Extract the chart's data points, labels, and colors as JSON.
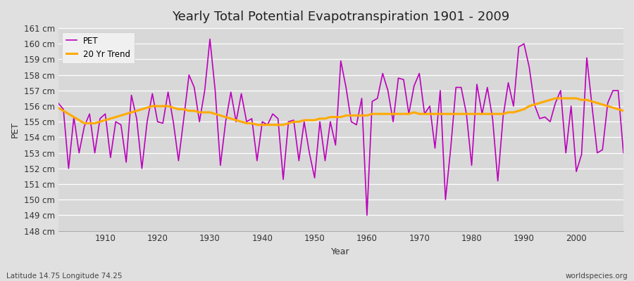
{
  "title": "Yearly Total Potential Evapotranspiration 1901 - 2009",
  "xlabel": "Year",
  "ylabel": "PET",
  "subtitle": "Latitude 14.75 Longitude 74.25",
  "watermark": "worldspecies.org",
  "ylim": [
    148,
    161
  ],
  "years": [
    1901,
    1902,
    1903,
    1904,
    1905,
    1906,
    1907,
    1908,
    1909,
    1910,
    1911,
    1912,
    1913,
    1914,
    1915,
    1916,
    1917,
    1918,
    1919,
    1920,
    1921,
    1922,
    1923,
    1924,
    1925,
    1926,
    1927,
    1928,
    1929,
    1930,
    1931,
    1932,
    1933,
    1934,
    1935,
    1936,
    1937,
    1938,
    1939,
    1940,
    1941,
    1942,
    1943,
    1944,
    1945,
    1946,
    1947,
    1948,
    1949,
    1950,
    1951,
    1952,
    1953,
    1954,
    1955,
    1956,
    1957,
    1958,
    1959,
    1960,
    1961,
    1962,
    1963,
    1964,
    1965,
    1966,
    1967,
    1968,
    1969,
    1970,
    1971,
    1972,
    1973,
    1974,
    1975,
    1976,
    1977,
    1978,
    1979,
    1980,
    1981,
    1982,
    1983,
    1984,
    1985,
    1986,
    1987,
    1988,
    1989,
    1990,
    1991,
    1992,
    1993,
    1994,
    1995,
    1996,
    1997,
    1998,
    1999,
    2000,
    2001,
    2002,
    2003,
    2004,
    2005,
    2006,
    2007,
    2008,
    2009
  ],
  "pet": [
    156.2,
    155.8,
    152.0,
    155.3,
    153.0,
    154.7,
    155.5,
    153.0,
    155.2,
    155.5,
    152.7,
    155.0,
    154.8,
    152.4,
    156.7,
    155.2,
    152.0,
    155.0,
    156.8,
    155.0,
    154.9,
    156.9,
    155.0,
    152.5,
    155.2,
    158.0,
    157.2,
    155.0,
    157.0,
    160.3,
    157.0,
    152.2,
    155.0,
    156.9,
    155.0,
    156.8,
    155.0,
    155.2,
    152.5,
    155.0,
    154.8,
    155.5,
    155.2,
    151.3,
    155.0,
    155.1,
    152.5,
    155.0,
    153.0,
    151.4,
    155.0,
    152.5,
    155.0,
    153.5,
    158.9,
    157.2,
    155.0,
    154.8,
    156.5,
    149.0,
    156.3,
    156.5,
    158.1,
    157.0,
    155.0,
    157.8,
    157.7,
    155.5,
    157.3,
    158.1,
    155.5,
    156.0,
    153.3,
    157.0,
    150.0,
    153.3,
    157.2,
    157.2,
    155.5,
    152.2,
    157.4,
    155.5,
    157.2,
    155.2,
    151.2,
    155.3,
    157.5,
    156.0,
    159.8,
    160.0,
    158.5,
    156.1,
    155.2,
    155.3,
    155.0,
    156.2,
    157.0,
    153.0,
    156.0,
    151.8,
    152.9,
    159.1,
    156.0,
    153.0,
    153.2,
    156.2,
    157.0,
    157.0,
    153.0
  ],
  "trend": [
    155.9,
    155.7,
    155.5,
    155.3,
    155.1,
    154.9,
    154.9,
    154.9,
    155.0,
    155.1,
    155.2,
    155.3,
    155.4,
    155.5,
    155.6,
    155.7,
    155.8,
    155.9,
    156.0,
    156.0,
    156.0,
    156.0,
    155.9,
    155.8,
    155.8,
    155.7,
    155.7,
    155.6,
    155.6,
    155.6,
    155.5,
    155.4,
    155.3,
    155.2,
    155.1,
    155.0,
    154.9,
    154.9,
    154.8,
    154.8,
    154.8,
    154.8,
    154.8,
    154.8,
    154.9,
    155.0,
    155.0,
    155.1,
    155.1,
    155.1,
    155.2,
    155.2,
    155.3,
    155.3,
    155.3,
    155.4,
    155.4,
    155.4,
    155.4,
    155.4,
    155.5,
    155.5,
    155.5,
    155.5,
    155.5,
    155.5,
    155.5,
    155.5,
    155.6,
    155.5,
    155.5,
    155.5,
    155.5,
    155.5,
    155.5,
    155.5,
    155.5,
    155.5,
    155.5,
    155.5,
    155.5,
    155.5,
    155.5,
    155.5,
    155.5,
    155.5,
    155.6,
    155.6,
    155.7,
    155.8,
    156.0,
    156.1,
    156.2,
    156.3,
    156.4,
    156.5,
    156.5,
    156.5,
    156.5,
    156.5,
    156.4,
    156.4,
    156.3,
    156.2,
    156.1,
    156.0,
    155.9,
    155.8,
    155.7
  ],
  "pet_color": "#bb00bb",
  "trend_color": "#ffaa00",
  "bg_color": "#e0e0e0",
  "plot_bg_color": "#d8d8d8",
  "grid_color": "#ffffff",
  "title_fontsize": 13,
  "axis_label_fontsize": 9,
  "tick_fontsize": 8.5,
  "legend_fontsize": 8.5,
  "legend_labels": [
    "PET",
    "20 Yr Trend"
  ],
  "xticks": [
    1910,
    1920,
    1930,
    1940,
    1950,
    1960,
    1970,
    1980,
    1990,
    2000
  ]
}
